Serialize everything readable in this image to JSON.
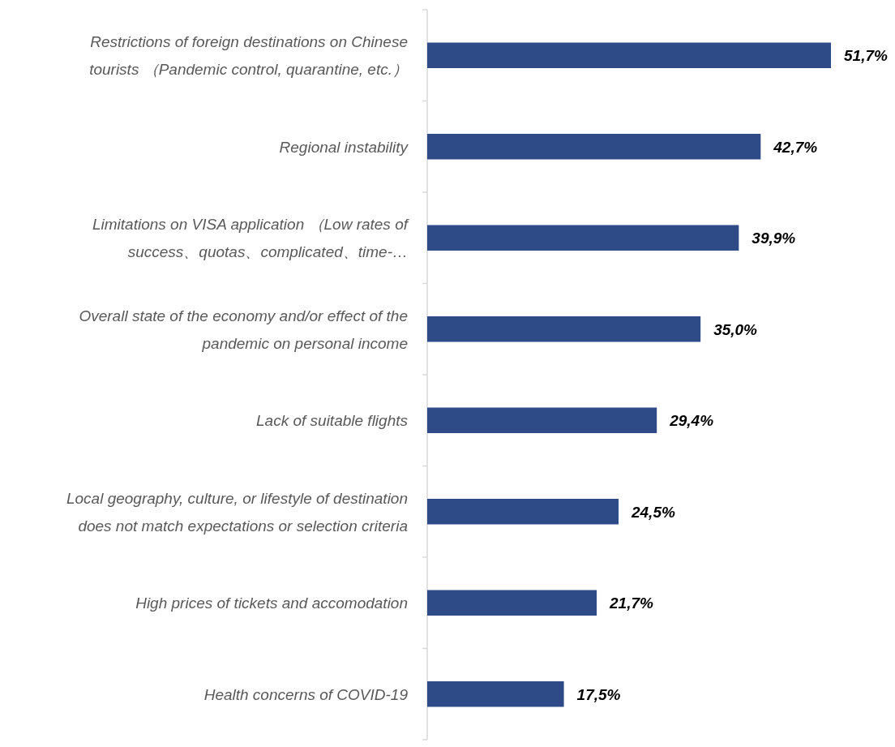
{
  "chart_data": {
    "type": "bar",
    "orientation": "horizontal",
    "color": "#2e4a87",
    "categories": [
      "Restrictions of foreign destinations on Chinese\ntourists （Pandemic control, quarantine, etc.）",
      "Regional instability",
      "Limitations on VISA application （Low rates of\nsuccess、quotas、complicated、time-…",
      "Overall state of the economy and/or effect of the\npandemic on personal income",
      "Lack of suitable flights",
      "Local geography, culture, or lifestyle of destination\ndoes not match expectations or selection criteria",
      "High prices of tickets and accomodation",
      "Health concerns of COVID-19"
    ],
    "values": [
      51.7,
      42.7,
      39.9,
      35.0,
      29.4,
      24.5,
      21.7,
      17.5
    ],
    "value_labels": [
      "51,7%",
      "42,7%",
      "39,9%",
      "35,0%",
      "29,4%",
      "24,5%",
      "21,7%",
      "17,5%"
    ]
  }
}
